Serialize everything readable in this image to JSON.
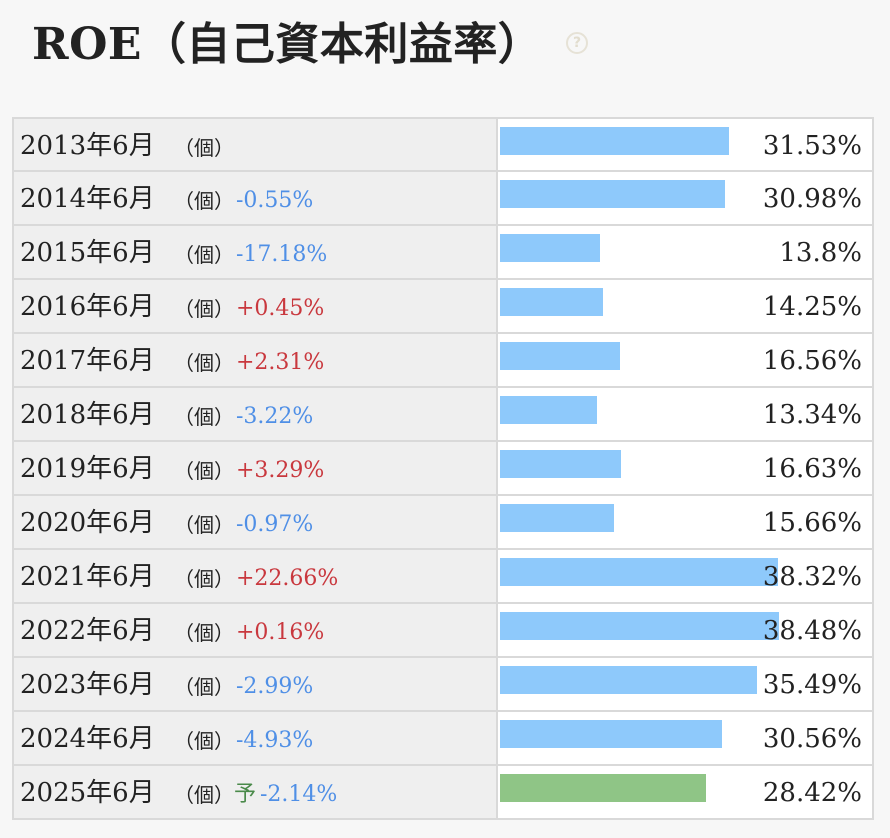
{
  "title": "ROE（自己資本利益率）",
  "help_icon": "question-icon",
  "colors": {
    "bar_actual": "#8ec9fb",
    "bar_forecast": "#8fc586",
    "change_negative": "#4f8fe6",
    "change_positive": "#c9383e",
    "forecast_label": "#4a8a4a"
  },
  "chart_data": {
    "type": "bar",
    "orientation": "horizontal",
    "title": "ROE（自己資本利益率）",
    "unit": "%",
    "xlim": [
      0,
      40
    ],
    "rows": [
      {
        "period": "2013年6月",
        "unit_label": "（個）",
        "change": "",
        "value": 31.53,
        "value_label": "31.53%",
        "forecast": false
      },
      {
        "period": "2014年6月",
        "unit_label": "（個）",
        "change": "-0.55%",
        "value": 30.98,
        "value_label": "30.98%",
        "forecast": false
      },
      {
        "period": "2015年6月",
        "unit_label": "（個）",
        "change": "-17.18%",
        "value": 13.8,
        "value_label": "13.8%",
        "forecast": false
      },
      {
        "period": "2016年6月",
        "unit_label": "（個）",
        "change": "+0.45%",
        "value": 14.25,
        "value_label": "14.25%",
        "forecast": false
      },
      {
        "period": "2017年6月",
        "unit_label": "（個）",
        "change": "+2.31%",
        "value": 16.56,
        "value_label": "16.56%",
        "forecast": false
      },
      {
        "period": "2018年6月",
        "unit_label": "（個）",
        "change": "-3.22%",
        "value": 13.34,
        "value_label": "13.34%",
        "forecast": false
      },
      {
        "period": "2019年6月",
        "unit_label": "（個）",
        "change": "+3.29%",
        "value": 16.63,
        "value_label": "16.63%",
        "forecast": false
      },
      {
        "period": "2020年6月",
        "unit_label": "（個）",
        "change": "-0.97%",
        "value": 15.66,
        "value_label": "15.66%",
        "forecast": false
      },
      {
        "period": "2021年6月",
        "unit_label": "（個）",
        "change": "+22.66%",
        "value": 38.32,
        "value_label": "38.32%",
        "forecast": false
      },
      {
        "period": "2022年6月",
        "unit_label": "（個）",
        "change": "+0.16%",
        "value": 38.48,
        "value_label": "38.48%",
        "forecast": false
      },
      {
        "period": "2023年6月",
        "unit_label": "（個）",
        "change": "-2.99%",
        "value": 35.49,
        "value_label": "35.49%",
        "forecast": false
      },
      {
        "period": "2024年6月",
        "unit_label": "（個）",
        "change": "-4.93%",
        "value": 30.56,
        "value_label": "30.56%",
        "forecast": false
      },
      {
        "period": "2025年6月",
        "unit_label": "（個）",
        "forecast_label": "予",
        "change": "-2.14%",
        "value": 28.42,
        "value_label": "28.42%",
        "forecast": true
      }
    ]
  }
}
